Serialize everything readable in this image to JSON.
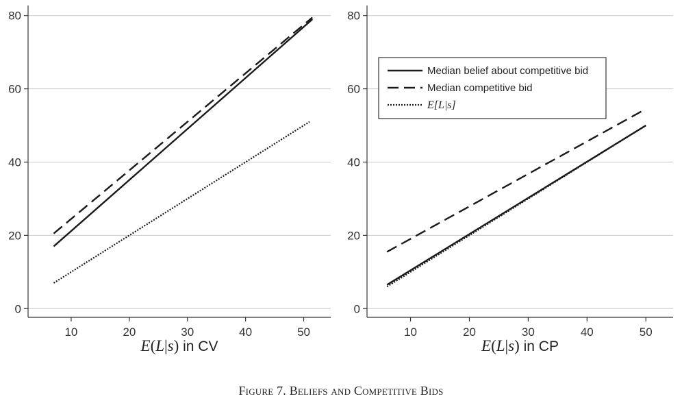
{
  "caption": "Figure 7. Beliefs and Competitive Bids",
  "chart_data": [
    {
      "type": "line",
      "panel": "left",
      "title": "",
      "xlabel": "E(L|s) in CV",
      "ylabel": "",
      "xlim": [
        4,
        53
      ],
      "ylim": [
        -2,
        82
      ],
      "xticks": [
        10,
        20,
        30,
        40,
        50
      ],
      "yticks": [
        0,
        20,
        40,
        60,
        80
      ],
      "grid": "horizontal",
      "series": [
        {
          "key": "belief",
          "style": "solid",
          "x": [
            7,
            51.5
          ],
          "values": [
            17,
            79
          ]
        },
        {
          "key": "bid",
          "style": "dashed",
          "x": [
            7,
            51.5
          ],
          "values": [
            20.5,
            79.5
          ]
        },
        {
          "key": "expect",
          "style": "dotted",
          "x": [
            7,
            51
          ],
          "values": [
            7,
            51
          ]
        }
      ]
    },
    {
      "type": "line",
      "panel": "right",
      "title": "",
      "xlabel": "E(L|s) in CP",
      "ylabel": "",
      "xlim": [
        4,
        53
      ],
      "ylim": [
        -2,
        82
      ],
      "xticks": [
        10,
        20,
        30,
        40,
        50
      ],
      "yticks": [
        0,
        20,
        40,
        60,
        80
      ],
      "grid": "horizontal",
      "legend": {
        "placement": "top-right",
        "entries": [
          {
            "series": "belief",
            "style": "solid",
            "label": "Median belief about competitive bid"
          },
          {
            "series": "bid",
            "style": "dashed",
            "label": "Median competitive bid"
          },
          {
            "series": "expect",
            "style": "dotted",
            "label": "E[L|s]"
          }
        ]
      },
      "series": [
        {
          "key": "belief",
          "style": "solid",
          "x": [
            6,
            50
          ],
          "values": [
            6.5,
            50
          ]
        },
        {
          "key": "bid",
          "style": "dashed",
          "x": [
            6,
            50
          ],
          "values": [
            15.5,
            54.5
          ]
        },
        {
          "key": "expect",
          "style": "dotted",
          "x": [
            6,
            50
          ],
          "values": [
            6,
            50
          ]
        }
      ]
    }
  ]
}
